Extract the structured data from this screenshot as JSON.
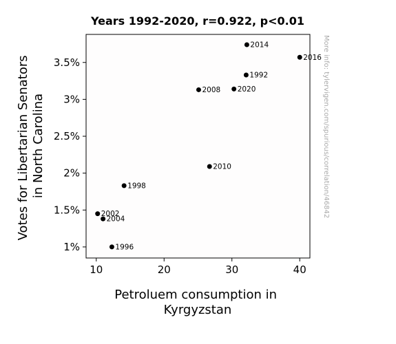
{
  "chart_data": {
    "type": "scatter",
    "title": "Years 1992-2020, r=0.922, p<0.01",
    "xlabel": [
      "Petroluem consumption in",
      "Kyrgyzstan"
    ],
    "ylabel": [
      "Votes for Libertarian Senators",
      "in North Carolina"
    ],
    "xlim": [
      8.5,
      41.5
    ],
    "ylim": [
      0.85,
      3.88
    ],
    "xticks": [
      10,
      20,
      30,
      40
    ],
    "xtick_labels": [
      "10",
      "20",
      "30",
      "40"
    ],
    "yticks": [
      1.0,
      1.5,
      2.0,
      2.5,
      3.0,
      3.5
    ],
    "ytick_labels": [
      "1%",
      "1.5%",
      "2%",
      "2.5%",
      "3%",
      "3.5%"
    ],
    "grid": false,
    "points": [
      {
        "label": "1992",
        "x": 32.1,
        "y": 3.33
      },
      {
        "label": "1996",
        "x": 12.3,
        "y": 1.0
      },
      {
        "label": "1998",
        "x": 14.1,
        "y": 1.83
      },
      {
        "label": "2002",
        "x": 10.2,
        "y": 1.45
      },
      {
        "label": "2004",
        "x": 11.0,
        "y": 1.38
      },
      {
        "label": "2008",
        "x": 25.1,
        "y": 3.13
      },
      {
        "label": "2010",
        "x": 26.7,
        "y": 2.09
      },
      {
        "label": "2014",
        "x": 32.2,
        "y": 3.74
      },
      {
        "label": "2016",
        "x": 40.0,
        "y": 3.57
      },
      {
        "label": "2020",
        "x": 30.3,
        "y": 3.14
      }
    ],
    "marker_color": "#000000",
    "side_note": "More info: tylervigen.com/spurious/correlation/46842"
  }
}
